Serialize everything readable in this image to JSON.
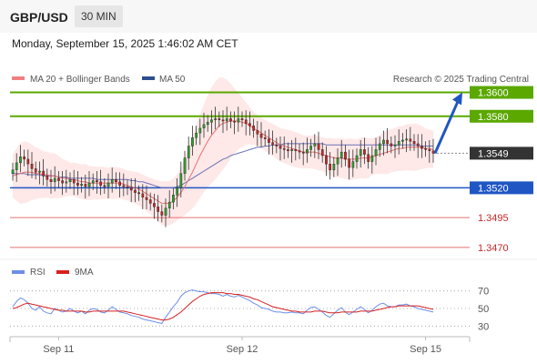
{
  "header": {
    "symbol": "GBP/USD",
    "timeframe": "30 MIN"
  },
  "datetime": "Monday, September 15, 2025 1:46:02 AM CET",
  "legend": {
    "ma20_bb": "MA 20 + Bollinger Bands",
    "ma50": "MA 50",
    "credit": "Research © 2025 Trading Central",
    "rsi": "RSI",
    "rsi_ma": "9MA"
  },
  "colors": {
    "up": "#2f9e2f",
    "down": "#c62828",
    "ma20": "#e57373",
    "ma50": "#6a72b8",
    "band": "#fde0e0",
    "green_level": "#5aa800",
    "blue_level": "#1f56c4",
    "red_level": "#e57373",
    "current": "#333333",
    "arrow": "#1f56c4",
    "rsi": "#6d8fe6",
    "rsi_ma": "#d62020"
  },
  "levels": [
    {
      "label": "1.3600",
      "value": 1.36,
      "kind": "resistance"
    },
    {
      "label": "1.3580",
      "value": 1.358,
      "kind": "resistance"
    },
    {
      "label": "1.3549",
      "value": 1.3549,
      "kind": "current"
    },
    {
      "label": "1.3520",
      "value": 1.352,
      "kind": "support"
    },
    {
      "label": "1.3495",
      "value": 1.3495,
      "kind": "support_weak"
    },
    {
      "label": "1.3470",
      "value": 1.347,
      "kind": "support_weak"
    }
  ],
  "chart_data": {
    "type": "line",
    "price_range": [
      1.346,
      1.3605
    ],
    "x_ticks": [
      {
        "label": "Sep 11",
        "index": 12
      },
      {
        "label": "Sep 12",
        "index": 60
      },
      {
        "label": "Sep 15",
        "index": 108
      }
    ],
    "close": [
      1.3535,
      1.3541,
      1.3546,
      1.3544,
      1.354,
      1.3536,
      1.3533,
      1.3534,
      1.353,
      1.3527,
      1.3525,
      1.3528,
      1.3526,
      1.3524,
      1.3525,
      1.3527,
      1.3524,
      1.3522,
      1.3523,
      1.3521,
      1.3524,
      1.3526,
      1.3525,
      1.3522,
      1.3521,
      1.3524,
      1.3527,
      1.3525,
      1.3522,
      1.3521,
      1.352,
      1.3518,
      1.3516,
      1.3515,
      1.3512,
      1.351,
      1.3507,
      1.3504,
      1.35,
      1.3497,
      1.3503,
      1.3508,
      1.3514,
      1.352,
      1.3532,
      1.3545,
      1.3555,
      1.3562,
      1.3566,
      1.357,
      1.3573,
      1.3575,
      1.3577,
      1.3578,
      1.3577,
      1.3576,
      1.3578,
      1.3576,
      1.3575,
      1.3578,
      1.3577,
      1.3574,
      1.3572,
      1.3568,
      1.3565,
      1.3562,
      1.3561,
      1.3558,
      1.3556,
      1.3555,
      1.3553,
      1.3552,
      1.3551,
      1.3552,
      1.3551,
      1.355,
      1.3549,
      1.3552,
      1.3555,
      1.3557,
      1.3552,
      1.3547,
      1.354,
      1.3535,
      1.354,
      1.3545,
      1.355,
      1.3544,
      1.3537,
      1.3542,
      1.3547,
      1.3552,
      1.3548,
      1.3542,
      1.3547,
      1.3552,
      1.3557,
      1.356,
      1.3557,
      1.3555,
      1.3556,
      1.3559,
      1.356,
      1.3561,
      1.3559,
      1.3557,
      1.3555,
      1.3553,
      1.3552,
      1.3551,
      1.3549
    ],
    "ma20": [
      1.353,
      1.3531,
      1.3532,
      1.3533,
      1.3533,
      1.3533,
      1.3532,
      1.3532,
      1.3531,
      1.3531,
      1.353,
      1.353,
      1.3529,
      1.3528,
      1.3528,
      1.3527,
      1.3527,
      1.3526,
      1.3525,
      1.3525,
      1.3524,
      1.3524,
      1.3524,
      1.3524,
      1.3524,
      1.3524,
      1.3524,
      1.3524,
      1.3524,
      1.3523,
      1.3522,
      1.3521,
      1.352,
      1.3519,
      1.3517,
      1.3515,
      1.3513,
      1.3511,
      1.3509,
      1.3507,
      1.3507,
      1.3507,
      1.3509,
      1.3512,
      1.3516,
      1.3521,
      1.3527,
      1.3533,
      1.354,
      1.3547,
      1.3553,
      1.3559,
      1.3564,
      1.3568,
      1.3572,
      1.3574,
      1.3575,
      1.3576,
      1.3576,
      1.3576,
      1.3575,
      1.3574,
      1.3572,
      1.357,
      1.3568,
      1.3566,
      1.3564,
      1.3562,
      1.356,
      1.3558,
      1.3556,
      1.3555,
      1.3554,
      1.3553,
      1.3552,
      1.3551,
      1.355,
      1.355,
      1.355,
      1.355,
      1.3549,
      1.3548,
      1.3547,
      1.3546,
      1.3545,
      1.3545,
      1.3545,
      1.3544,
      1.3544,
      1.3544,
      1.3544,
      1.3545,
      1.3545,
      1.3545,
      1.3546,
      1.3547,
      1.3548,
      1.3549,
      1.355,
      1.3551,
      1.3552,
      1.3553,
      1.3553,
      1.3554,
      1.3554,
      1.3554,
      1.3554,
      1.3554,
      1.3553,
      1.3553,
      1.3552
    ],
    "ma50": [
      1.3532,
      1.3532,
      1.3532,
      1.3532,
      1.3531,
      1.3531,
      1.3531,
      1.3531,
      1.353,
      1.353,
      1.353,
      1.353,
      1.3529,
      1.3529,
      1.3529,
      1.3528,
      1.3528,
      1.3528,
      1.3528,
      1.3528,
      1.3528,
      1.3528,
      1.3527,
      1.3527,
      1.3527,
      1.3527,
      1.3527,
      1.3527,
      1.3527,
      1.3527,
      1.3527,
      1.3526,
      1.3526,
      1.3525,
      1.3525,
      1.3524,
      1.3523,
      1.3522,
      1.3521,
      1.352,
      1.352,
      1.352,
      1.352,
      1.3521,
      1.3522,
      1.3524,
      1.3526,
      1.3528,
      1.353,
      1.3532,
      1.3534,
      1.3536,
      1.3538,
      1.354,
      1.3542,
      1.3544,
      1.3545,
      1.3547,
      1.3548,
      1.3549,
      1.355,
      1.3551,
      1.3552,
      1.3553,
      1.3554,
      1.3554,
      1.3555,
      1.3555,
      1.3556,
      1.3556,
      1.3556,
      1.3557,
      1.3557,
      1.3557,
      1.3557,
      1.3557,
      1.3557,
      1.3557,
      1.3557,
      1.3557,
      1.3557,
      1.3557,
      1.3556,
      1.3556,
      1.3556,
      1.3556,
      1.3556,
      1.3556,
      1.3556,
      1.3556,
      1.3556,
      1.3556,
      1.3556,
      1.3556,
      1.3556,
      1.3556,
      1.3556,
      1.3556,
      1.3556,
      1.3556,
      1.3556,
      1.3556,
      1.3556,
      1.3556,
      1.3556,
      1.3556,
      1.3556,
      1.3555,
      1.3555,
      1.3555,
      1.3555
    ],
    "forecast_arrow": {
      "from": 1.3549,
      "to": 1.36
    },
    "rsi_ticks": [
      30,
      50,
      70
    ],
    "rsi_range": [
      20,
      80
    ],
    "rsi": [
      52,
      58,
      62,
      60,
      56,
      50,
      48,
      52,
      47,
      45,
      44,
      50,
      48,
      46,
      47,
      50,
      47,
      45,
      47,
      44,
      48,
      50,
      49,
      46,
      45,
      48,
      52,
      49,
      46,
      45,
      44,
      42,
      41,
      40,
      38,
      37,
      36,
      35,
      34,
      33,
      40,
      46,
      52,
      57,
      64,
      68,
      70,
      71,
      70,
      69,
      69,
      68,
      67,
      67,
      66,
      64,
      66,
      64,
      63,
      65,
      63,
      61,
      59,
      56,
      54,
      51,
      50,
      49,
      47,
      46,
      46,
      45,
      45,
      46,
      45,
      45,
      44,
      48,
      51,
      52,
      49,
      46,
      42,
      40,
      44,
      48,
      51,
      46,
      43,
      46,
      49,
      52,
      49,
      45,
      48,
      52,
      55,
      56,
      53,
      52,
      52,
      54,
      54,
      55,
      53,
      52,
      50,
      49,
      48,
      47,
      46
    ],
    "rsi_ma": [
      50,
      51,
      53,
      55,
      56,
      55,
      54,
      53,
      52,
      51,
      50,
      49,
      48,
      48,
      47,
      47,
      47,
      47,
      47,
      46,
      46,
      47,
      47,
      47,
      47,
      47,
      47,
      47,
      47,
      47,
      46,
      45,
      44,
      43,
      42,
      41,
      40,
      39,
      38,
      37,
      37,
      38,
      40,
      43,
      46,
      50,
      54,
      58,
      61,
      64,
      66,
      67,
      68,
      68,
      68,
      68,
      67,
      67,
      66,
      66,
      65,
      64,
      63,
      61,
      60,
      58,
      56,
      54,
      52,
      51,
      50,
      49,
      48,
      47,
      47,
      46,
      46,
      46,
      46,
      47,
      47,
      47,
      46,
      45,
      45,
      45,
      46,
      46,
      46,
      46,
      46,
      47,
      47,
      47,
      47,
      48,
      49,
      50,
      51,
      52,
      52,
      53,
      53,
      53,
      53,
      53,
      53,
      52,
      51,
      50,
      49
    ]
  }
}
